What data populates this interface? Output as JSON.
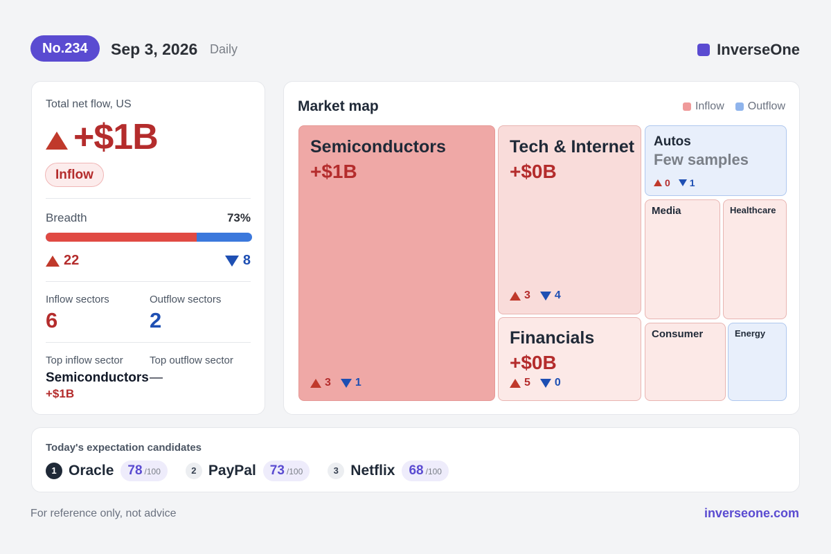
{
  "header": {
    "issue": "No.234",
    "date": "Sep 3, 2026",
    "frequency": "Daily",
    "brand": "InverseOne",
    "brand_color": "#5a4bd1"
  },
  "summary": {
    "label": "Total net flow, US",
    "net_flow": "+$1B",
    "badge": "Inflow",
    "breadth_label": "Breadth",
    "breadth_pct": "73%",
    "breadth_fraction": 0.73,
    "up_count": "22",
    "down_count": "8",
    "inflow_sectors_label": "Inflow sectors",
    "inflow_sectors": "6",
    "outflow_sectors_label": "Outflow sectors",
    "outflow_sectors": "2",
    "top_inflow_label": "Top inflow sector",
    "top_outflow_label": "Top outflow sector",
    "top_inflow_name": "Semiconductors",
    "top_outflow_name": "—",
    "top_inflow_value": "+$1B"
  },
  "market_map": {
    "title": "Market map",
    "legend_inflow": "Inflow",
    "legend_outflow": "Outflow",
    "inflow_color": "#ef9a9a",
    "outflow_color": "#8fb4ec",
    "tiles": {
      "semiconductors": {
        "name": "Semiconductors",
        "value": "+$1B",
        "up": "3",
        "down": "1"
      },
      "tech": {
        "name": "Tech & Internet",
        "value": "+$0B",
        "up": "3",
        "down": "4"
      },
      "financials": {
        "name": "Financials",
        "value": "+$0B",
        "up": "5",
        "down": "0"
      },
      "autos": {
        "name": "Autos",
        "note": "Few samples",
        "up": "0",
        "down": "1"
      },
      "media": {
        "name": "Media"
      },
      "healthcare": {
        "name": "Healthcare"
      },
      "consumer": {
        "name": "Consumer"
      },
      "energy": {
        "name": "Energy"
      }
    }
  },
  "candidates": {
    "title": "Today's expectation candidates",
    "items": [
      {
        "rank": "1",
        "name": "Oracle",
        "score": "78",
        "max": "/100"
      },
      {
        "rank": "2",
        "name": "PayPal",
        "score": "73",
        "max": "/100"
      },
      {
        "rank": "3",
        "name": "Netflix",
        "score": "68",
        "max": "/100"
      }
    ]
  },
  "footer": {
    "disclaimer": "For reference only, not advice",
    "site": "inverseone.com"
  }
}
